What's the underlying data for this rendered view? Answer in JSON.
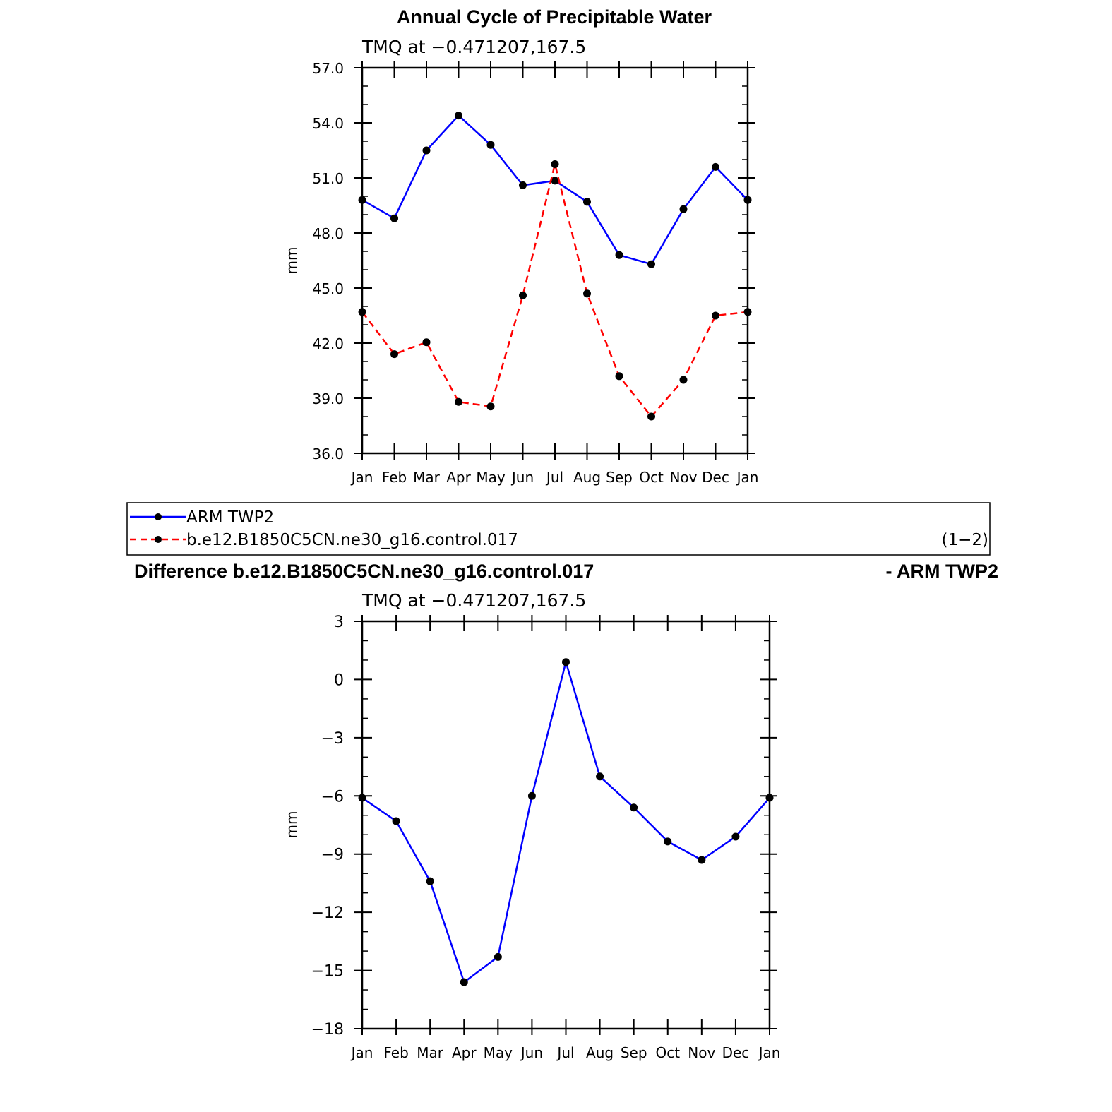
{
  "figure": {
    "top_title": "Annual Cycle of Precipitable Water",
    "top_subtitle": "TMQ at −0.471207,167.5",
    "diff_title_left": "Difference b.e12.B1850C5CN.ne30_g16.control.017",
    "diff_title_right": "- ARM TWP2",
    "diff_subtitle": "TMQ at −0.471207,167.5",
    "legend_note": "(1−2)"
  },
  "chart_data": [
    {
      "type": "line",
      "title": "Annual Cycle of Precipitable Water",
      "subtitle": "TMQ at −0.471207,167.5",
      "xlabel": "",
      "ylabel": "mm",
      "categories": [
        "Jan",
        "Feb",
        "Mar",
        "Apr",
        "May",
        "Jun",
        "Jul",
        "Aug",
        "Sep",
        "Oct",
        "Nov",
        "Dec",
        "Jan"
      ],
      "yticks": [
        "36.0",
        "39.0",
        "42.0",
        "45.0",
        "48.0",
        "51.0",
        "54.0",
        "57.0"
      ],
      "ylim": [
        36,
        57
      ],
      "legend_position": "bottom",
      "series": [
        {
          "name": "ARM TWP2",
          "color": "#0000ff",
          "dash": "solid",
          "marker": "filled-circle",
          "values": [
            49.8,
            48.8,
            52.5,
            54.4,
            52.8,
            50.6,
            50.85,
            49.7,
            46.8,
            46.3,
            49.3,
            51.6,
            49.8
          ]
        },
        {
          "name": "b.e12.B1850C5CN.ne30_g16.control.017",
          "color": "#ff0000",
          "dash": "dashed",
          "marker": "filled-circle",
          "values": [
            43.7,
            41.4,
            42.05,
            38.8,
            38.55,
            44.6,
            51.75,
            44.7,
            40.2,
            38.0,
            40.0,
            43.5,
            43.7
          ]
        }
      ],
      "grid": false
    },
    {
      "type": "line",
      "title": "Difference b.e12.B1850C5CN.ne30_g16.control.017 - ARM TWP2",
      "subtitle": "TMQ at −0.471207,167.5",
      "xlabel": "",
      "ylabel": "mm",
      "categories": [
        "Jan",
        "Feb",
        "Mar",
        "Apr",
        "May",
        "Jun",
        "Jul",
        "Aug",
        "Sep",
        "Oct",
        "Nov",
        "Dec",
        "Jan"
      ],
      "yticks": [
        "−18",
        "−15",
        "−12",
        "−9",
        "−6",
        "−3",
        "0",
        "3"
      ],
      "ylim": [
        -18,
        3
      ],
      "series": [
        {
          "color": "#0000ff",
          "dash": "solid",
          "marker": "filled-circle",
          "values": [
            -6.1,
            -7.3,
            -10.4,
            -15.6,
            -14.3,
            -6.0,
            0.9,
            -5.0,
            -6.6,
            -8.35,
            -9.3,
            -8.1,
            -6.1
          ]
        }
      ],
      "grid": false
    }
  ]
}
